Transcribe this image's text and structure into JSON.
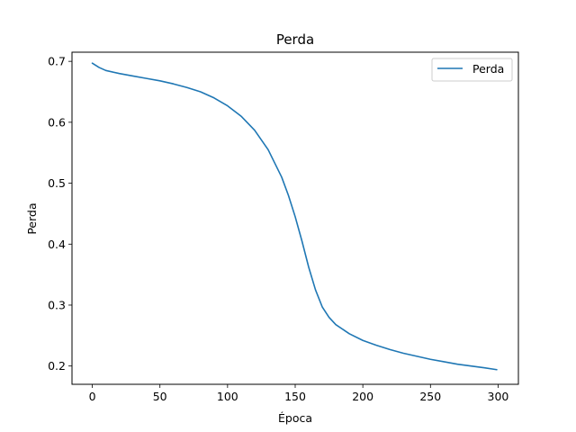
{
  "chart_data": {
    "type": "line",
    "title": "Perda",
    "xlabel": "Época",
    "ylabel": "Perda",
    "xlim": [
      -15,
      315
    ],
    "ylim": [
      0.17,
      0.715
    ],
    "xticks": [
      0,
      50,
      100,
      150,
      200,
      250,
      300
    ],
    "yticks": [
      0.2,
      0.3,
      0.4,
      0.5,
      0.6,
      0.7
    ],
    "ytick_labels": [
      "0.2",
      "0.3",
      "0.4",
      "0.5",
      "0.6",
      "0.7"
    ],
    "grid": false,
    "legend_position": "top-right",
    "series": [
      {
        "name": "Perda",
        "color": "#1f77b4",
        "x": [
          0,
          5,
          10,
          20,
          30,
          40,
          50,
          60,
          70,
          80,
          90,
          100,
          110,
          120,
          130,
          140,
          145,
          150,
          155,
          160,
          165,
          170,
          175,
          180,
          190,
          200,
          210,
          220,
          230,
          240,
          250,
          260,
          270,
          280,
          290,
          299
        ],
        "y": [
          0.697,
          0.69,
          0.685,
          0.68,
          0.676,
          0.672,
          0.668,
          0.663,
          0.657,
          0.65,
          0.64,
          0.627,
          0.61,
          0.587,
          0.555,
          0.51,
          0.48,
          0.445,
          0.405,
          0.362,
          0.325,
          0.297,
          0.28,
          0.268,
          0.253,
          0.242,
          0.234,
          0.227,
          0.221,
          0.216,
          0.211,
          0.207,
          0.203,
          0.2,
          0.197,
          0.194
        ]
      }
    ]
  }
}
